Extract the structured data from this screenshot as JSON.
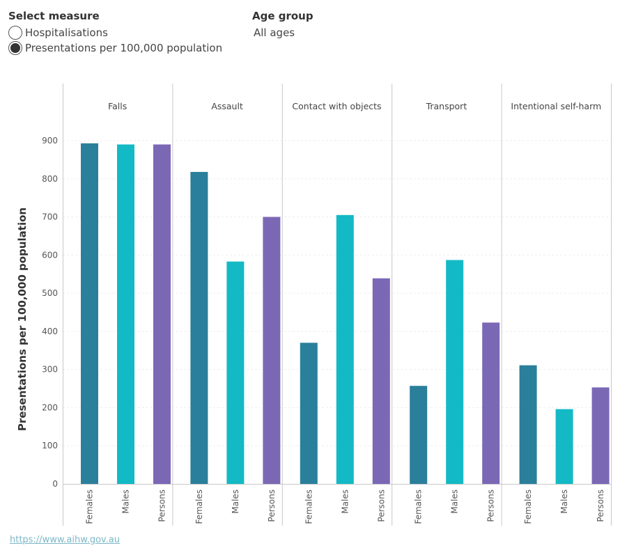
{
  "controls": {
    "measure_title": "Select measure",
    "options": [
      {
        "label": "Hospitalisations",
        "selected": false
      },
      {
        "label": "Presentations per 100,000 population",
        "selected": true
      }
    ],
    "age_title": "Age group",
    "age_value": "All ages"
  },
  "footer": {
    "link": "https://www.aihw.gov.au"
  },
  "chart_data": {
    "type": "bar",
    "panels": [
      "Falls",
      "Assault",
      "Contact with objects",
      "Transport",
      "Intentional self-harm"
    ],
    "categories": [
      "Females",
      "Males",
      "Persons"
    ],
    "values": [
      [
        893,
        890,
        890
      ],
      [
        818,
        583,
        700
      ],
      [
        370,
        705,
        539
      ],
      [
        257,
        587,
        423
      ],
      [
        311,
        196,
        253
      ]
    ],
    "ylabel": "Presentations per 100,000 population",
    "ylim": [
      0,
      900
    ],
    "yticks": [
      0,
      100,
      200,
      300,
      400,
      500,
      600,
      700,
      800,
      900
    ],
    "colors": {
      "Females": "#2a7f9a",
      "Males": "#13bac5",
      "Persons": "#7b68b5"
    },
    "grid": true
  }
}
